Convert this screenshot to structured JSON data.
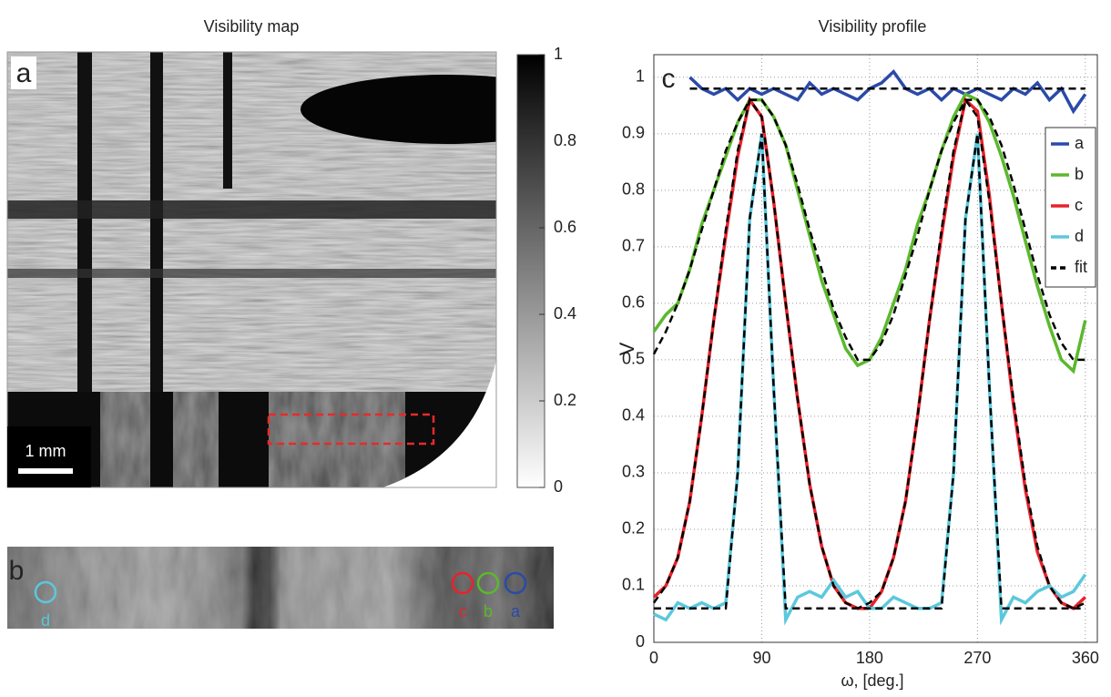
{
  "map_panel": {
    "title": "Visibility map",
    "panel_label": "a",
    "scale_bar": "1 mm",
    "colorbar": {
      "lim": [
        0,
        1
      ],
      "ticks": [
        0,
        0.2,
        0.4,
        0.6,
        0.8,
        1
      ]
    }
  },
  "strip_panel": {
    "panel_label": "b",
    "points": [
      "d",
      "c",
      "b",
      "a"
    ]
  },
  "chart_data": {
    "type": "line",
    "title": "Visibility profile",
    "panel_label": "c",
    "x_label": "ω, [deg.]",
    "y_label": "V",
    "x": [
      0,
      10,
      20,
      30,
      40,
      50,
      60,
      70,
      80,
      90,
      100,
      110,
      120,
      130,
      140,
      150,
      160,
      170,
      180,
      190,
      200,
      210,
      220,
      230,
      240,
      250,
      260,
      270,
      280,
      290,
      300,
      310,
      320,
      330,
      340,
      350,
      360
    ],
    "xlim": [
      0,
      370
    ],
    "xticks": [
      0,
      90,
      180,
      270,
      360
    ],
    "ylim": [
      0,
      1.04
    ],
    "yticks": [
      0,
      0.1,
      0.2,
      0.3,
      0.4,
      0.5,
      0.6,
      0.7,
      0.8,
      0.9,
      1
    ],
    "grid": true,
    "legend": "upper right",
    "series": [
      {
        "name": "a",
        "color": "#2b4aa8",
        "values": [
          null,
          null,
          null,
          1.0,
          0.98,
          0.97,
          0.98,
          0.96,
          0.98,
          0.97,
          0.98,
          0.97,
          0.96,
          0.99,
          0.97,
          0.98,
          0.97,
          0.96,
          0.98,
          0.99,
          1.01,
          0.98,
          0.97,
          0.98,
          0.96,
          0.98,
          0.97,
          0.98,
          0.97,
          0.96,
          0.98,
          0.97,
          0.99,
          0.96,
          0.98,
          0.94,
          0.97
        ]
      },
      {
        "name": "b",
        "color": "#5cb82e",
        "values": [
          0.55,
          0.58,
          0.6,
          0.66,
          0.74,
          0.8,
          0.86,
          0.92,
          0.96,
          0.96,
          0.93,
          0.88,
          0.8,
          0.72,
          0.64,
          0.58,
          0.52,
          0.49,
          0.5,
          0.54,
          0.6,
          0.66,
          0.74,
          0.8,
          0.87,
          0.93,
          0.97,
          0.96,
          0.92,
          0.86,
          0.79,
          0.71,
          0.63,
          0.56,
          0.5,
          0.48,
          0.57
        ]
      },
      {
        "name": "c",
        "color": "#e8222a",
        "values": [
          0.08,
          0.1,
          0.15,
          0.25,
          0.4,
          0.57,
          0.72,
          0.86,
          0.96,
          0.93,
          0.78,
          0.6,
          0.43,
          0.28,
          0.17,
          0.1,
          0.07,
          0.06,
          0.06,
          0.09,
          0.15,
          0.25,
          0.4,
          0.57,
          0.72,
          0.86,
          0.96,
          0.94,
          0.79,
          0.6,
          0.42,
          0.27,
          0.16,
          0.1,
          0.07,
          0.06,
          0.08
        ]
      },
      {
        "name": "d",
        "color": "#5bc8dc",
        "values": [
          0.05,
          0.04,
          0.07,
          0.06,
          0.07,
          0.06,
          0.07,
          0.3,
          0.75,
          0.9,
          0.45,
          0.04,
          0.08,
          0.09,
          0.08,
          0.11,
          0.08,
          0.09,
          0.06,
          0.06,
          0.08,
          0.07,
          0.06,
          0.06,
          0.07,
          0.3,
          0.75,
          0.9,
          0.45,
          0.04,
          0.08,
          0.07,
          0.09,
          0.1,
          0.08,
          0.09,
          0.12
        ]
      },
      {
        "name": "fit",
        "color": "#000000",
        "dashed": true,
        "curves": [
          [
            null,
            null,
            null,
            0.98,
            0.98,
            0.98,
            0.98,
            0.98,
            0.98,
            0.98,
            0.98,
            0.98,
            0.98,
            0.98,
            0.98,
            0.98,
            0.98,
            0.98,
            0.98,
            0.98,
            0.98,
            0.98,
            0.98,
            0.98,
            0.98,
            0.98,
            0.98,
            0.98,
            0.98,
            0.98,
            0.98,
            0.98,
            0.98,
            0.98,
            0.98,
            0.98,
            0.98
          ],
          [
            0.51,
            0.55,
            0.6,
            0.66,
            0.73,
            0.8,
            0.87,
            0.92,
            0.96,
            0.96,
            0.93,
            0.88,
            0.81,
            0.73,
            0.66,
            0.59,
            0.54,
            0.5,
            0.5,
            0.53,
            0.58,
            0.65,
            0.72,
            0.8,
            0.87,
            0.92,
            0.96,
            0.96,
            0.93,
            0.88,
            0.81,
            0.73,
            0.65,
            0.58,
            0.53,
            0.5,
            0.5
          ],
          [
            0.07,
            0.1,
            0.15,
            0.25,
            0.4,
            0.57,
            0.73,
            0.87,
            0.96,
            0.93,
            0.78,
            0.6,
            0.43,
            0.28,
            0.17,
            0.1,
            0.07,
            0.06,
            0.07,
            0.09,
            0.15,
            0.25,
            0.4,
            0.57,
            0.73,
            0.87,
            0.96,
            0.93,
            0.78,
            0.6,
            0.43,
            0.28,
            0.17,
            0.1,
            0.07,
            0.06,
            0.07
          ],
          [
            0.06,
            0.06,
            0.06,
            0.06,
            0.06,
            0.06,
            0.06,
            0.3,
            0.75,
            0.9,
            0.45,
            0.06,
            0.06,
            0.06,
            0.06,
            0.06,
            0.06,
            0.06,
            0.06,
            0.06,
            0.06,
            0.06,
            0.06,
            0.06,
            0.06,
            0.3,
            0.75,
            0.9,
            0.45,
            0.06,
            0.06,
            0.06,
            0.06,
            0.06,
            0.06,
            0.06,
            0.06
          ]
        ]
      }
    ]
  }
}
